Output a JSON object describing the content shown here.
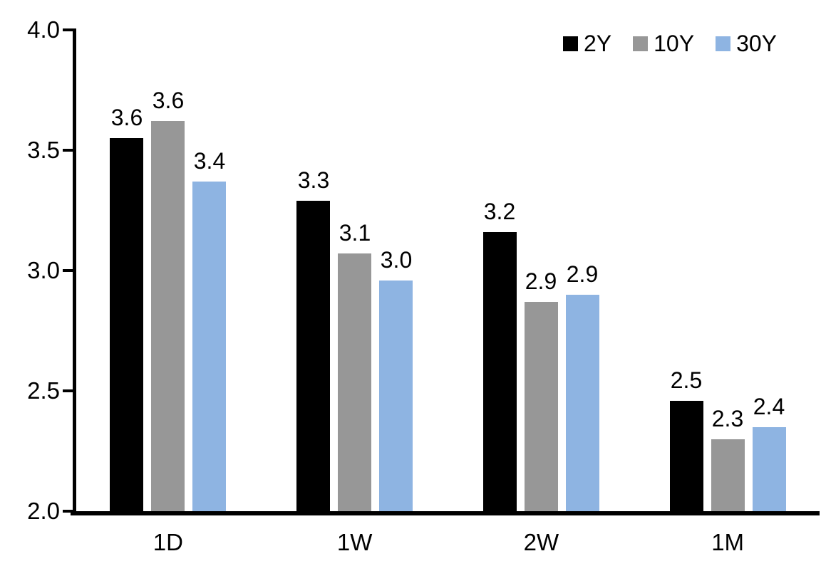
{
  "chart_data": {
    "type": "bar",
    "title": "",
    "xlabel": "",
    "ylabel": "",
    "categories": [
      "1D",
      "1W",
      "2W",
      "1M"
    ],
    "series": [
      {
        "name": "2Y",
        "color": "#000000",
        "values": [
          3.55,
          3.29,
          3.16,
          2.46
        ],
        "labels": [
          "3.6",
          "3.3",
          "3.2",
          "2.5"
        ]
      },
      {
        "name": "10Y",
        "color": "#979797",
        "values": [
          3.62,
          3.07,
          2.87,
          2.3
        ],
        "labels": [
          "3.6",
          "3.1",
          "2.9",
          "2.3"
        ]
      },
      {
        "name": "30Y",
        "color": "#8EB4E2",
        "values": [
          3.37,
          2.96,
          2.9,
          2.35
        ],
        "labels": [
          "3.4",
          "3.0",
          "2.9",
          "2.4"
        ]
      }
    ],
    "ylim": [
      2.0,
      4.0
    ],
    "yticks": [
      4.0,
      3.5,
      3.0,
      2.5,
      2.0
    ],
    "ytick_labels": [
      "4.0",
      "3.5",
      "3.0",
      "2.5",
      "2.0"
    ],
    "grid": false,
    "legend_position": "top-right",
    "axis_color": "#000000",
    "background_color": "#ffffff"
  }
}
